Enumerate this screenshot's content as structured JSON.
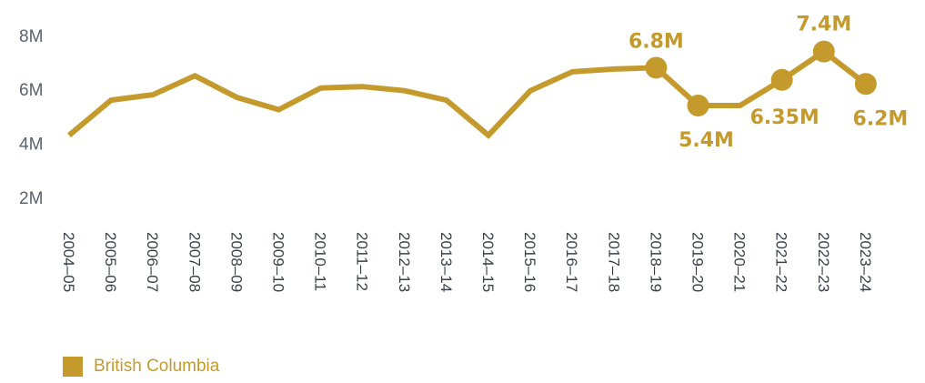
{
  "chart_data": {
    "type": "line",
    "categories": [
      "2004–05",
      "2005–06",
      "2006–07",
      "2007–08",
      "2008–09",
      "2009–10",
      "2010–11",
      "2011–12",
      "2012–13",
      "2013–14",
      "2014–15",
      "2015–16",
      "2016–17",
      "2017–18",
      "2018–19",
      "2019–20",
      "2020–21",
      "2021–22",
      "2022–23",
      "2023–24"
    ],
    "series": [
      {
        "name": "British Columbia",
        "color": "#c49a2c",
        "values": [
          4.3,
          5.6,
          5.8,
          6.5,
          5.7,
          5.25,
          6.05,
          6.1,
          5.95,
          5.6,
          4.3,
          5.95,
          6.65,
          6.75,
          6.8,
          5.4,
          5.4,
          6.35,
          7.4,
          6.2
        ]
      }
    ],
    "data_labels": [
      {
        "index": 14,
        "text": "6.8M"
      },
      {
        "index": 15,
        "text": "5.4M"
      },
      {
        "index": 17,
        "text": "6.35M"
      },
      {
        "index": 18,
        "text": "7.4M"
      },
      {
        "index": 19,
        "text": "6.2M"
      }
    ],
    "y_ticks": [
      {
        "value": 2,
        "label": "2M"
      },
      {
        "value": 4,
        "label": "4M"
      },
      {
        "value": 6,
        "label": "6M"
      },
      {
        "value": 8,
        "label": "8M"
      }
    ],
    "ylim": [
      2,
      8
    ],
    "grid": false,
    "legend_position": "bottom-left",
    "title": "",
    "xlabel": "",
    "ylabel": ""
  }
}
